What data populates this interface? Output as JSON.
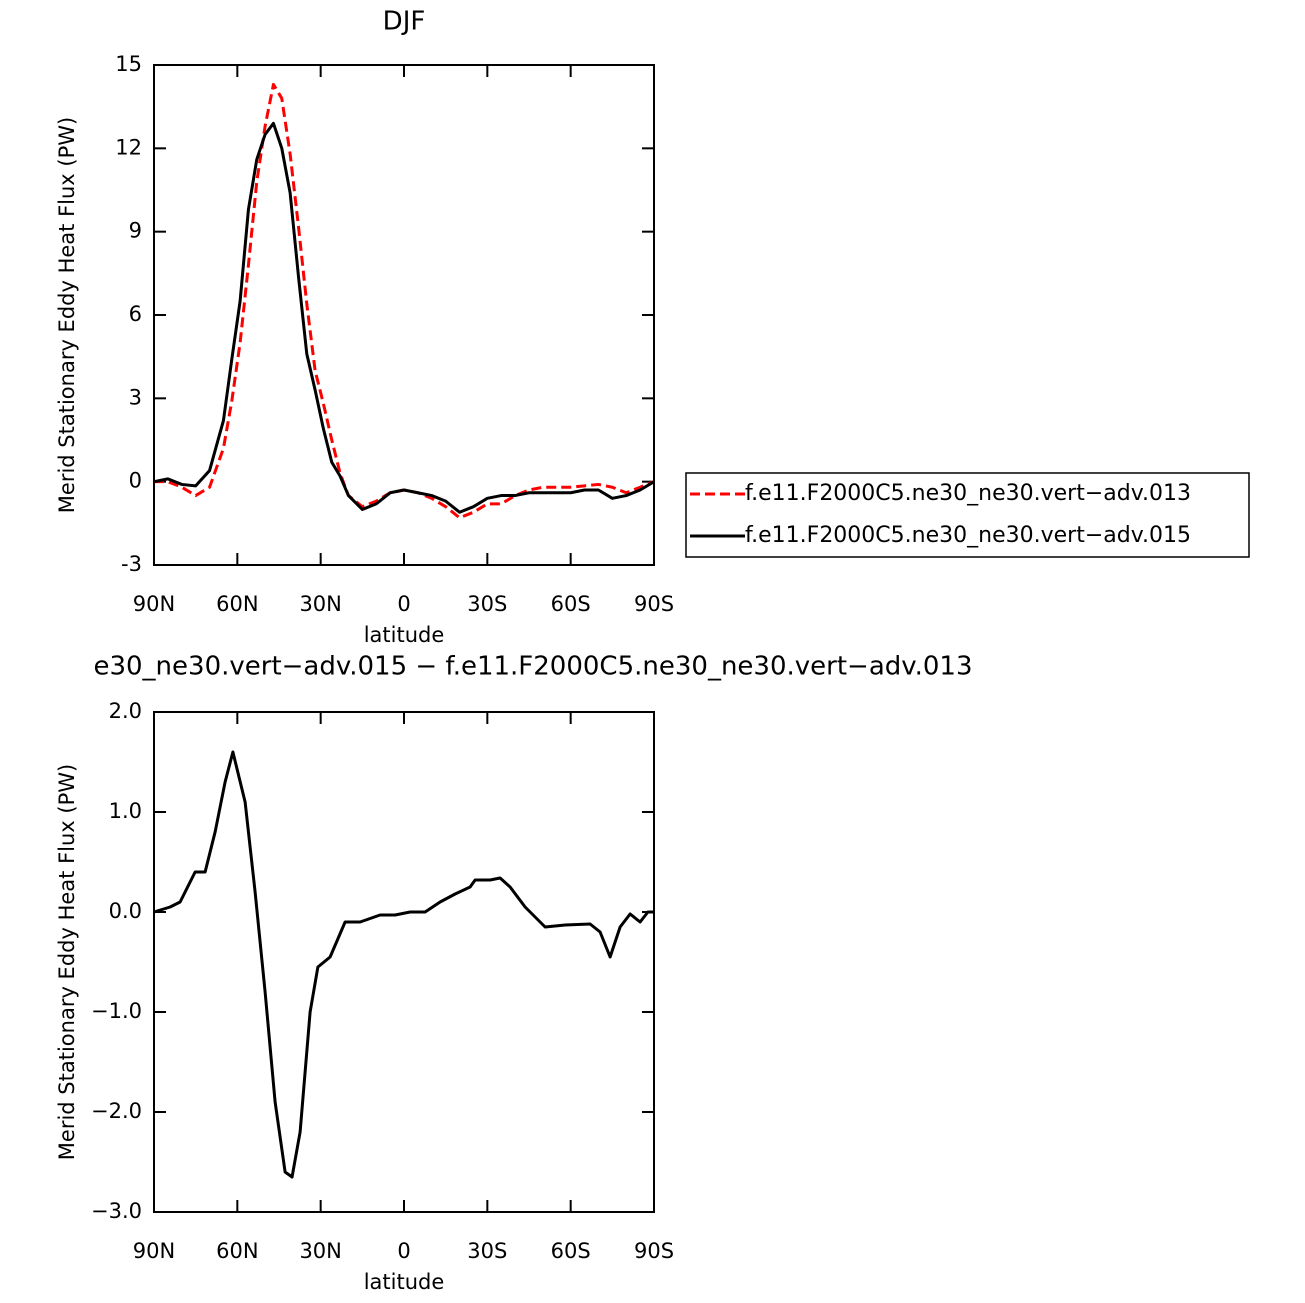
{
  "chart_data": [
    {
      "type": "line",
      "title": "DJF",
      "xlabel": "latitude",
      "ylabel": "Merid Stationary Eddy Heat Flux (PW)",
      "x": [
        90,
        85,
        80,
        75,
        70,
        65,
        62,
        59,
        56,
        53,
        50,
        47,
        44,
        41,
        38,
        35,
        32,
        29,
        26,
        23,
        20,
        15,
        10,
        5,
        0,
        -5,
        -10,
        -15,
        -20,
        -25,
        -30,
        -35,
        -40,
        -45,
        -50,
        -55,
        -60,
        -65,
        -70,
        -75,
        -80,
        -85,
        -90
      ],
      "series": [
        {
          "name": "f.e11.F2000C5.ne30_ne30.vert−adv.013",
          "color": "#ff0000",
          "dashed": true,
          "values": [
            0,
            0,
            -0.2,
            -0.5,
            -0.2,
            1.2,
            2.9,
            5.0,
            7.8,
            10.8,
            12.8,
            14.3,
            13.8,
            11.8,
            9.2,
            6.4,
            4.0,
            2.8,
            1.5,
            0.3,
            -0.5,
            -0.9,
            -0.7,
            -0.4,
            -0.3,
            -0.4,
            -0.6,
            -0.9,
            -1.3,
            -1.1,
            -0.8,
            -0.8,
            -0.5,
            -0.3,
            -0.2,
            -0.2,
            -0.2,
            -0.15,
            -0.1,
            -0.2,
            -0.4,
            -0.2,
            0
          ]
        },
        {
          "name": "f.e11.F2000C5.ne30_ne30.vert−adv.015",
          "color": "#000000",
          "dashed": false,
          "values": [
            0,
            0.1,
            -0.1,
            -0.15,
            0.4,
            2.2,
            4.4,
            6.5,
            9.8,
            11.6,
            12.5,
            12.9,
            12.0,
            10.4,
            7.4,
            4.6,
            3.3,
            1.9,
            0.7,
            0.2,
            -0.5,
            -1.0,
            -0.8,
            -0.4,
            -0.3,
            -0.4,
            -0.5,
            -0.7,
            -1.1,
            -0.9,
            -0.6,
            -0.5,
            -0.5,
            -0.4,
            -0.4,
            -0.4,
            -0.4,
            -0.3,
            -0.3,
            -0.6,
            -0.5,
            -0.3,
            0
          ]
        }
      ],
      "xlim": [
        90,
        -90
      ],
      "xticks": [
        {
          "value": 90,
          "label": "90N"
        },
        {
          "value": 60,
          "label": "60N"
        },
        {
          "value": 30,
          "label": "30N"
        },
        0,
        {
          "value": -30,
          "label": "30S"
        },
        {
          "value": -60,
          "label": "60S"
        },
        {
          "value": -90,
          "label": "90S"
        }
      ],
      "ylim": [
        -3,
        15
      ],
      "yticks": [
        -3,
        0,
        3,
        6,
        9,
        12,
        15
      ],
      "legend": "right"
    },
    {
      "type": "line",
      "title": "e30_ne30.vert−adv.015 − f.e11.F2000C5.ne30_ne30.vert−adv.013",
      "xlabel": "latitude",
      "ylabel": "Merid Stationary Eddy Heat Flux (PW)",
      "x": [
        90,
        84.2,
        80.6,
        75.2,
        71.6,
        68,
        64.4,
        61.6,
        57.2,
        53.6,
        50,
        46.4,
        42.8,
        40.3,
        37.4,
        33.8,
        31,
        26.6,
        21.2,
        15.8,
        8.6,
        3.2,
        -2.2,
        -7.6,
        -13,
        -18.4,
        -23.8,
        -25.6,
        -31,
        -34.6,
        -38.2,
        -43.6,
        -50.8,
        -58,
        -67,
        -70.6,
        -74.2,
        -77.8,
        -81.4,
        -85,
        -87.8,
        -90
      ],
      "series": [
        {
          "color": "#000000",
          "dashed": false,
          "values": [
            0,
            0.05,
            0.1,
            0.4,
            0.4,
            0.8,
            1.3,
            1.6,
            1.1,
            0.2,
            -0.8,
            -1.9,
            -2.6,
            -2.65,
            -2.2,
            -1.0,
            -0.55,
            -0.45,
            -0.1,
            -0.1,
            -0.03,
            -0.03,
            0,
            0,
            0.1,
            0.18,
            0.25,
            0.32,
            0.32,
            0.34,
            0.25,
            0.05,
            -0.15,
            -0.13,
            -0.12,
            -0.2,
            -0.45,
            -0.15,
            -0.02,
            -0.1,
            0,
            0
          ]
        }
      ],
      "xlim": [
        90,
        -90
      ],
      "xticks": [
        {
          "value": 90,
          "label": "90N"
        },
        {
          "value": 60,
          "label": "60N"
        },
        {
          "value": 30,
          "label": "30N"
        },
        0,
        {
          "value": -30,
          "label": "30S"
        },
        {
          "value": -60,
          "label": "60S"
        },
        {
          "value": -90,
          "label": "90S"
        }
      ],
      "ylim": [
        -3,
        2
      ],
      "yticks": [
        {
          "value": -3,
          "label": "−3.0"
        },
        {
          "value": -2,
          "label": "−2.0"
        },
        {
          "value": -1,
          "label": "−1.0"
        },
        {
          "value": 0,
          "label": "0.0"
        },
        {
          "value": 1,
          "label": "1.0"
        },
        {
          "value": 2,
          "label": "2.0"
        }
      ]
    }
  ]
}
